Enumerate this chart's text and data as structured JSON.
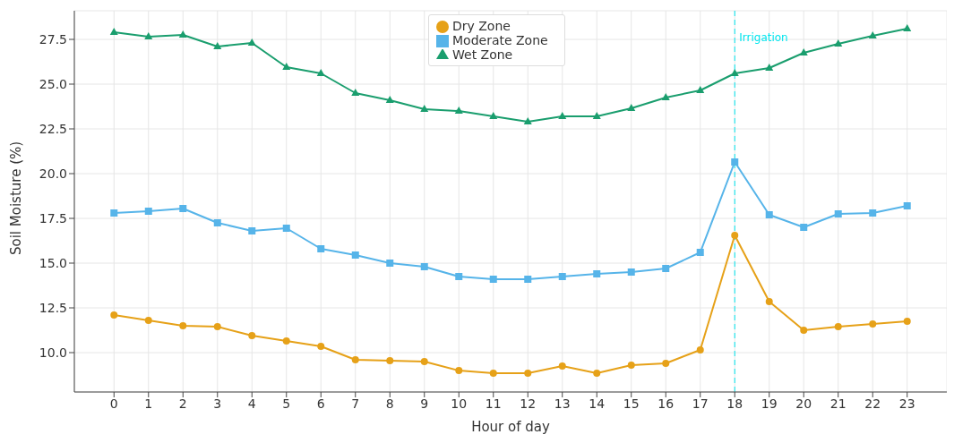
{
  "chart_data": {
    "type": "line",
    "xlabel": "Hour of day",
    "ylabel": "Soil Moisture (%)",
    "x": [
      0,
      1,
      2,
      3,
      4,
      5,
      6,
      7,
      8,
      9,
      10,
      11,
      12,
      13,
      14,
      15,
      16,
      17,
      18,
      19,
      20,
      21,
      22,
      23
    ],
    "series": [
      {
        "name": "Dry Zone",
        "color": "#e6a118",
        "marker": "circle",
        "values": [
          12.1,
          11.8,
          11.5,
          11.45,
          10.95,
          10.65,
          10.35,
          9.6,
          9.55,
          9.5,
          9.0,
          8.85,
          8.85,
          9.25,
          8.85,
          9.3,
          9.4,
          10.15,
          16.55,
          12.85,
          11.25,
          11.45,
          11.6,
          11.75
        ]
      },
      {
        "name": "Moderate Zone",
        "color": "#56b4e9",
        "marker": "square",
        "values": [
          17.8,
          17.9,
          18.05,
          17.25,
          16.8,
          16.95,
          15.8,
          15.45,
          15.0,
          14.8,
          14.25,
          14.1,
          14.1,
          14.25,
          14.4,
          14.5,
          14.7,
          15.6,
          20.65,
          17.7,
          17.0,
          17.75,
          17.8,
          18.2
        ]
      },
      {
        "name": "Wet Zone",
        "color": "#1a9e6e",
        "marker": "triangle",
        "values": [
          27.9,
          27.65,
          27.75,
          27.1,
          27.3,
          25.95,
          25.6,
          24.5,
          24.1,
          23.6,
          23.5,
          23.2,
          22.9,
          23.2,
          23.2,
          23.65,
          24.25,
          24.65,
          25.6,
          25.9,
          26.75,
          27.25,
          27.7,
          28.1
        ]
      }
    ],
    "xlim": [
      -1.15,
      24.15
    ],
    "xticks": [
      0,
      1,
      2,
      3,
      4,
      5,
      6,
      7,
      8,
      9,
      10,
      11,
      12,
      13,
      14,
      15,
      16,
      17,
      18,
      19,
      20,
      21,
      22,
      23
    ],
    "ylim": [
      7.8,
      29.1
    ],
    "yticks": [
      {
        "value": 10,
        "label": "10.0"
      },
      {
        "value": 12.5,
        "label": "12.5"
      },
      {
        "value": 15,
        "label": "15.0"
      },
      {
        "value": 17.5,
        "label": "17.5"
      },
      {
        "value": 20,
        "label": "20.0"
      },
      {
        "value": 22.5,
        "label": "22.5"
      },
      {
        "value": 25,
        "label": "25.0"
      },
      {
        "value": 27.5,
        "label": "27.5"
      }
    ],
    "ref_lines": [
      {
        "axis": "x",
        "value": 18,
        "label": "Irrigation",
        "color": "#00e5ee",
        "line_style": "dashed"
      }
    ],
    "grid": true,
    "legend": "top",
    "line_style": "solid"
  }
}
